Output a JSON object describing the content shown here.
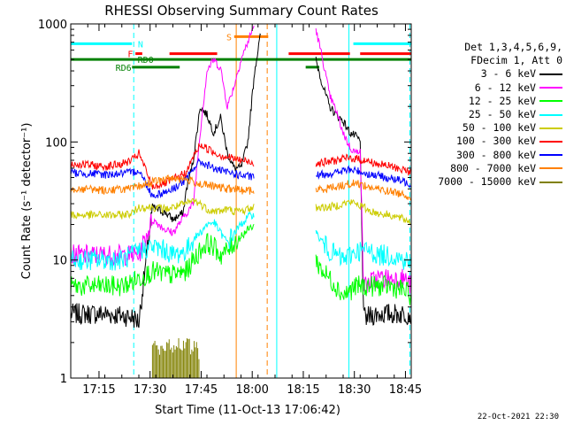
{
  "chart_data": {
    "type": "line",
    "title": "RHESSI Observing Summary Count Rates",
    "xlabel": "Start Time (11-Oct-13 17:06:42)",
    "ylabel": "Count Rate (s⁻¹ detector⁻¹)",
    "yscale": "log",
    "ylim": [
      1,
      1000
    ],
    "xlim_minutes_after_17_06_42": [
      0,
      100
    ],
    "x_tick_labels": [
      "17:15",
      "17:30",
      "17:45",
      "18:00",
      "18:15",
      "18:30",
      "18:45"
    ],
    "y_tick_labels": [
      "1",
      "10",
      "100",
      "1000"
    ],
    "legend": {
      "header": [
        "Det 1,3,4,5,6,9,",
        "FDecim 1, Att 0"
      ],
      "entries": [
        {
          "label": "3 - 6 keV",
          "color": "#000000"
        },
        {
          "label": "6 - 12 keV",
          "color": "#ff00ff"
        },
        {
          "label": "12 - 25 keV",
          "color": "#00ff00"
        },
        {
          "label": "25 - 50 keV",
          "color": "#00ffff"
        },
        {
          "label": "50 - 100 keV",
          "color": "#cccc00"
        },
        {
          "label": "100 - 300 keV",
          "color": "#ff0000"
        },
        {
          "label": "300 - 800 keV",
          "color": "#0000ff"
        },
        {
          "label": "800 - 7000 keV",
          "color": "#ff8000"
        },
        {
          "label": "7000 - 15000 keV",
          "color": "#808000"
        }
      ]
    },
    "series": [
      {
        "name": "3 - 6 keV",
        "color": "#000000",
        "x": [
          0,
          10,
          18,
          20,
          24,
          28,
          30,
          33,
          34,
          36,
          38,
          40,
          42,
          44,
          46,
          48,
          50,
          52,
          54,
          56,
          58,
          60,
          60.5,
          63,
          64,
          66,
          68,
          70,
          72,
          74,
          76,
          78,
          80,
          82,
          84,
          85,
          86,
          90,
          94,
          98,
          100
        ],
        "y": [
          3.5,
          3.5,
          3.3,
          3,
          28,
          25,
          22,
          25,
          40,
          70,
          200,
          170,
          120,
          160,
          80,
          60,
          60,
          100,
          400,
          900,
          null,
          null,
          null,
          null,
          null,
          null,
          null,
          null,
          500,
          300,
          200,
          170,
          150,
          120,
          110,
          100,
          3.2,
          3.5,
          3.5,
          3.5,
          3.5
        ]
      },
      {
        "name": "6 - 12 keV",
        "color": "#ff00ff",
        "x": [
          0,
          5,
          10,
          15,
          18,
          20,
          24,
          28,
          30,
          34,
          36,
          38,
          40,
          42,
          44,
          46,
          48,
          50,
          52,
          54,
          56,
          58,
          60,
          63,
          72,
          74,
          76,
          78,
          80,
          82,
          84,
          85,
          86,
          88,
          90,
          94,
          98,
          100
        ],
        "y": [
          11,
          11,
          11,
          11,
          11,
          11,
          22,
          18,
          17,
          25,
          30,
          120,
          400,
          500,
          420,
          200,
          300,
          500,
          700,
          1000,
          null,
          null,
          null,
          null,
          900,
          500,
          250,
          180,
          120,
          90,
          80,
          90,
          6,
          6.5,
          7,
          7,
          7,
          6
        ]
      },
      {
        "name": "12 - 25 keV",
        "color": "#00ff00",
        "x": [
          0,
          5,
          10,
          15,
          18,
          20,
          24,
          28,
          30,
          34,
          36,
          38,
          40,
          42,
          44,
          46,
          48,
          50,
          52,
          54,
          56,
          58,
          60,
          63,
          72,
          74,
          76,
          78,
          80,
          82,
          84,
          86,
          88,
          90,
          94,
          98,
          100
        ],
        "y": [
          6,
          6,
          6,
          6,
          6.5,
          7,
          8,
          7.5,
          7.5,
          8,
          10,
          12,
          14,
          13,
          11,
          12,
          14,
          16,
          18,
          20,
          null,
          null,
          null,
          null,
          10,
          8,
          7,
          6,
          5,
          5.5,
          6,
          6,
          6,
          6,
          6,
          5.5,
          5
        ]
      },
      {
        "name": "25 - 50 keV",
        "color": "#00ffff",
        "x": [
          0,
          5,
          10,
          15,
          18,
          20,
          24,
          28,
          30,
          34,
          36,
          38,
          40,
          42,
          44,
          46,
          48,
          50,
          52,
          54,
          56,
          58,
          60,
          63,
          72,
          74,
          76,
          78,
          80,
          82,
          84,
          86,
          88,
          90,
          94,
          98,
          100
        ],
        "y": [
          10,
          10,
          10,
          10,
          11,
          12,
          13,
          12,
          11,
          12,
          15,
          17,
          20,
          21,
          17,
          14,
          17,
          20,
          23,
          25,
          null,
          null,
          null,
          null,
          17,
          14,
          12,
          11,
          10,
          11,
          12,
          12,
          12,
          11,
          11,
          10,
          9.5
        ]
      },
      {
        "name": "50 - 100 keV",
        "color": "#cccc00",
        "x": [
          0,
          5,
          10,
          15,
          18,
          20,
          24,
          28,
          30,
          34,
          36,
          38,
          40,
          42,
          44,
          46,
          48,
          50,
          52,
          54,
          56,
          58,
          60,
          63,
          72,
          74,
          76,
          78,
          80,
          82,
          84,
          86,
          88,
          90,
          94,
          98,
          100
        ],
        "y": [
          24,
          24,
          24,
          24,
          25,
          28,
          28,
          27,
          28,
          30,
          32,
          30,
          27,
          26,
          26,
          27,
          26,
          26,
          27,
          28,
          null,
          null,
          null,
          null,
          28,
          28,
          28,
          29,
          30,
          31,
          30,
          28,
          26,
          25,
          24,
          22,
          21
        ]
      },
      {
        "name": "100 - 300 keV",
        "color": "#ff0000",
        "x": [
          0,
          5,
          10,
          15,
          18,
          20,
          24,
          28,
          30,
          34,
          36,
          38,
          40,
          42,
          44,
          46,
          48,
          50,
          52,
          54,
          56,
          58,
          60,
          63,
          72,
          74,
          76,
          78,
          80,
          82,
          84,
          86,
          88,
          90,
          94,
          98,
          100
        ],
        "y": [
          65,
          64,
          62,
          65,
          70,
          80,
          42,
          45,
          48,
          55,
          75,
          95,
          88,
          82,
          77,
          75,
          72,
          70,
          68,
          66,
          null,
          null,
          null,
          null,
          66,
          67,
          68,
          70,
          72,
          73,
          72,
          70,
          68,
          65,
          62,
          58,
          55
        ]
      },
      {
        "name": "300 - 800 keV",
        "color": "#0000ff",
        "x": [
          0,
          5,
          10,
          15,
          18,
          20,
          24,
          28,
          30,
          34,
          36,
          38,
          40,
          42,
          44,
          46,
          48,
          50,
          52,
          54,
          56,
          58,
          60,
          63,
          72,
          74,
          76,
          78,
          80,
          82,
          84,
          86,
          88,
          90,
          94,
          98,
          100
        ],
        "y": [
          55,
          54,
          53,
          54,
          55,
          58,
          35,
          38,
          40,
          48,
          60,
          68,
          64,
          60,
          57,
          55,
          54,
          52,
          51,
          50,
          null,
          null,
          null,
          null,
          52,
          53,
          54,
          55,
          57,
          58,
          57,
          55,
          53,
          52,
          49,
          46,
          44
        ]
      },
      {
        "name": "800 - 7000 keV",
        "color": "#ff8000",
        "x": [
          0,
          5,
          10,
          15,
          18,
          20,
          24,
          28,
          30,
          34,
          36,
          38,
          40,
          42,
          44,
          46,
          48,
          50,
          52,
          54,
          56,
          58,
          60,
          63,
          72,
          74,
          76,
          78,
          80,
          82,
          84,
          86,
          88,
          90,
          94,
          98,
          100
        ],
        "y": [
          40,
          40,
          39,
          40,
          40,
          42,
          46,
          48,
          50,
          48,
          46,
          44,
          43,
          42,
          41,
          40,
          40,
          39,
          39,
          38,
          null,
          null,
          null,
          null,
          39,
          40,
          41,
          42,
          43,
          44,
          45,
          43,
          41,
          40,
          38,
          36,
          34
        ]
      },
      {
        "name": "7000 - 15000 keV",
        "color": "#808000",
        "x": [
          24,
          25,
          26,
          27,
          28,
          29,
          30,
          31,
          32,
          33,
          34,
          35,
          36,
          37,
          38
        ],
        "y": [
          1.8,
          1.9,
          1.7,
          1.85,
          1.9,
          1.6,
          1.8,
          1.9,
          1.75,
          1.85,
          1.9,
          1.7,
          1.8,
          1.6,
          1.5
        ]
      }
    ],
    "flags": [
      {
        "label": "N",
        "color": "#00ffff",
        "y": 680,
        "x": [
          [
            0,
            18
          ],
          [
            83,
            100
          ]
        ]
      },
      {
        "label": "F",
        "color": "#ff0000",
        "y": 560,
        "x": [
          [
            19,
            21
          ],
          [
            29,
            43
          ],
          [
            64,
            82
          ],
          [
            85,
            100
          ]
        ]
      },
      {
        "label": "RD0",
        "color": "#008000",
        "y": 500,
        "x": [
          [
            0,
            100
          ]
        ]
      },
      {
        "label": "RD6",
        "color": "#008000",
        "y": 430,
        "x": [
          [
            18,
            32
          ],
          [
            69,
            73
          ]
        ]
      },
      {
        "label": "S",
        "color": "#ff8000",
        "y": 780,
        "x": [
          [
            48,
            58
          ]
        ]
      }
    ],
    "vertical_markers": [
      {
        "x": 0,
        "color": "#00ffff",
        "style": "solid"
      },
      {
        "x": 18.5,
        "color": "#00ffff",
        "style": "dashed"
      },
      {
        "x": 48.6,
        "color": "#ff8000",
        "style": "solid"
      },
      {
        "x": 57.7,
        "color": "#ff8000",
        "style": "dashed"
      },
      {
        "x": 60.5,
        "color": "#00ffff",
        "style": "solid"
      },
      {
        "x": 81.7,
        "color": "#00ffff",
        "style": "solid"
      },
      {
        "x": 99.6,
        "color": "#00ffff",
        "style": "dashed"
      }
    ]
  },
  "footer": {
    "stamp": "22-Oct-2021 22:30"
  }
}
